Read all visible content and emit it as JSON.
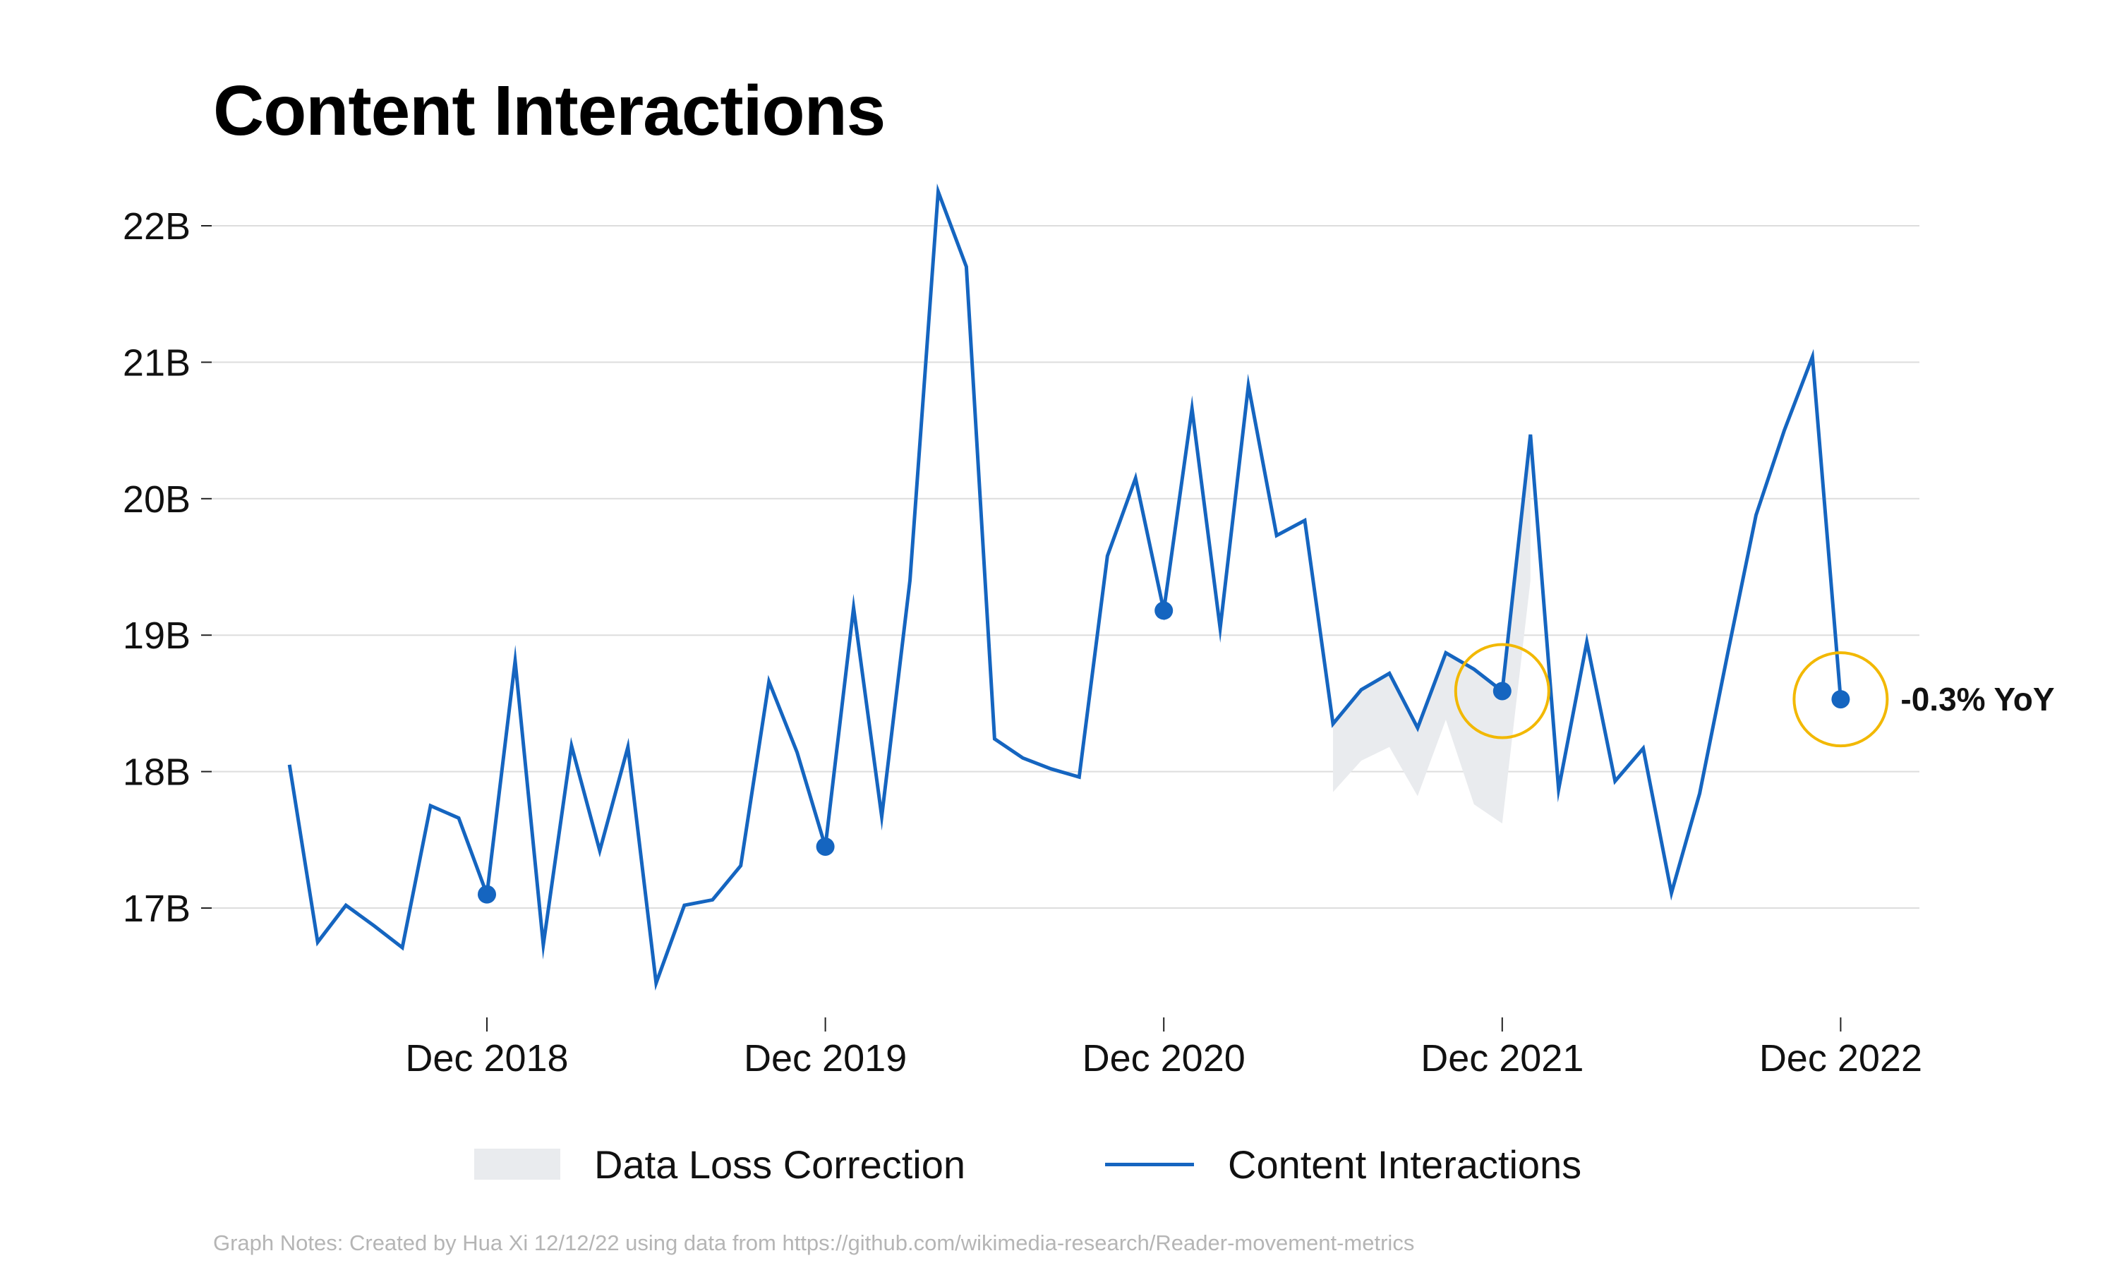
{
  "title": "Content Interactions",
  "notes": "Graph Notes: Created by Hua Xi 12/12/22 using data from https://github.com/wikimedia-research/Reader-movement-metrics",
  "legend": {
    "area_label": "Data Loss Correction",
    "line_label": "Content Interactions"
  },
  "colors": {
    "line": "#1565c0",
    "band": "#e9ebee",
    "highlight_ring": "#f2b800",
    "grid": "#dddddd"
  },
  "chart_data": {
    "type": "line",
    "title": "Content Interactions",
    "xlabel": "",
    "ylabel": "",
    "ylim": [
      16.1,
      22.5
    ],
    "yticks": [
      {
        "value": 17,
        "label": "17B"
      },
      {
        "value": 18,
        "label": "18B"
      },
      {
        "value": 19,
        "label": "19B"
      },
      {
        "value": 20,
        "label": "20B"
      },
      {
        "value": 21,
        "label": "21B"
      },
      {
        "value": 22,
        "label": "22B"
      }
    ],
    "xticks": [
      {
        "x": "2018-12",
        "label": "Dec 2018"
      },
      {
        "x": "2019-12",
        "label": "Dec 2019"
      },
      {
        "x": "2020-12",
        "label": "Dec 2020"
      },
      {
        "x": "2021-12",
        "label": "Dec 2021"
      },
      {
        "x": "2022-12",
        "label": "Dec 2022"
      }
    ],
    "grid": true,
    "legend_position": "bottom",
    "series": [
      {
        "name": "Content Interactions",
        "color": "#1565c0",
        "x": [
          "2018-05",
          "2018-06",
          "2018-07",
          "2018-08",
          "2018-09",
          "2018-10",
          "2018-11",
          "2018-12",
          "2019-01",
          "2019-02",
          "2019-03",
          "2019-04",
          "2019-05",
          "2019-06",
          "2019-07",
          "2019-08",
          "2019-09",
          "2019-10",
          "2019-11",
          "2019-12",
          "2020-01",
          "2020-02",
          "2020-03",
          "2020-04",
          "2020-05",
          "2020-06",
          "2020-07",
          "2020-08",
          "2020-09",
          "2020-10",
          "2020-11",
          "2020-12",
          "2021-01",
          "2021-02",
          "2021-03",
          "2021-04",
          "2021-05",
          "2021-06",
          "2021-07",
          "2021-08",
          "2021-09",
          "2021-10",
          "2021-11",
          "2021-12",
          "2022-01",
          "2022-02",
          "2022-03",
          "2022-04",
          "2022-05",
          "2022-06",
          "2022-07",
          "2022-08",
          "2022-09",
          "2022-10",
          "2022-11",
          "2022-12"
        ],
        "values": [
          18.05,
          16.75,
          17.02,
          16.87,
          16.71,
          17.75,
          17.66,
          17.1,
          18.81,
          16.73,
          18.19,
          17.42,
          18.18,
          16.45,
          17.02,
          17.06,
          17.31,
          18.66,
          18.14,
          17.45,
          19.2,
          17.67,
          19.4,
          22.25,
          21.7,
          18.24,
          18.1,
          18.02,
          17.96,
          19.58,
          20.15,
          19.18,
          20.66,
          19.05,
          20.83,
          19.73,
          19.84,
          18.35,
          18.6,
          18.72,
          18.32,
          18.87,
          18.75,
          18.59,
          20.47,
          17.87,
          18.95,
          17.93,
          18.17,
          17.11,
          17.84,
          18.87,
          19.88,
          20.5,
          21.04,
          18.53
        ]
      }
    ],
    "band": {
      "name": "Data Loss Correction",
      "color": "#e9ebee",
      "x": [
        "2021-06",
        "2021-07",
        "2021-08",
        "2021-09",
        "2021-10",
        "2021-11",
        "2021-12",
        "2022-01"
      ],
      "lower": [
        17.85,
        18.08,
        18.18,
        17.82,
        18.38,
        17.76,
        17.62,
        19.4
      ],
      "upper": [
        18.35,
        18.6,
        18.72,
        18.32,
        18.87,
        18.75,
        18.59,
        20.47
      ]
    },
    "markers": [
      "2018-12",
      "2019-12",
      "2020-12",
      "2021-12",
      "2022-12"
    ],
    "highlights": [
      "2021-12",
      "2022-12"
    ],
    "annotations": [
      {
        "x": "2022-12",
        "text": "-0.3% YoY"
      }
    ]
  }
}
